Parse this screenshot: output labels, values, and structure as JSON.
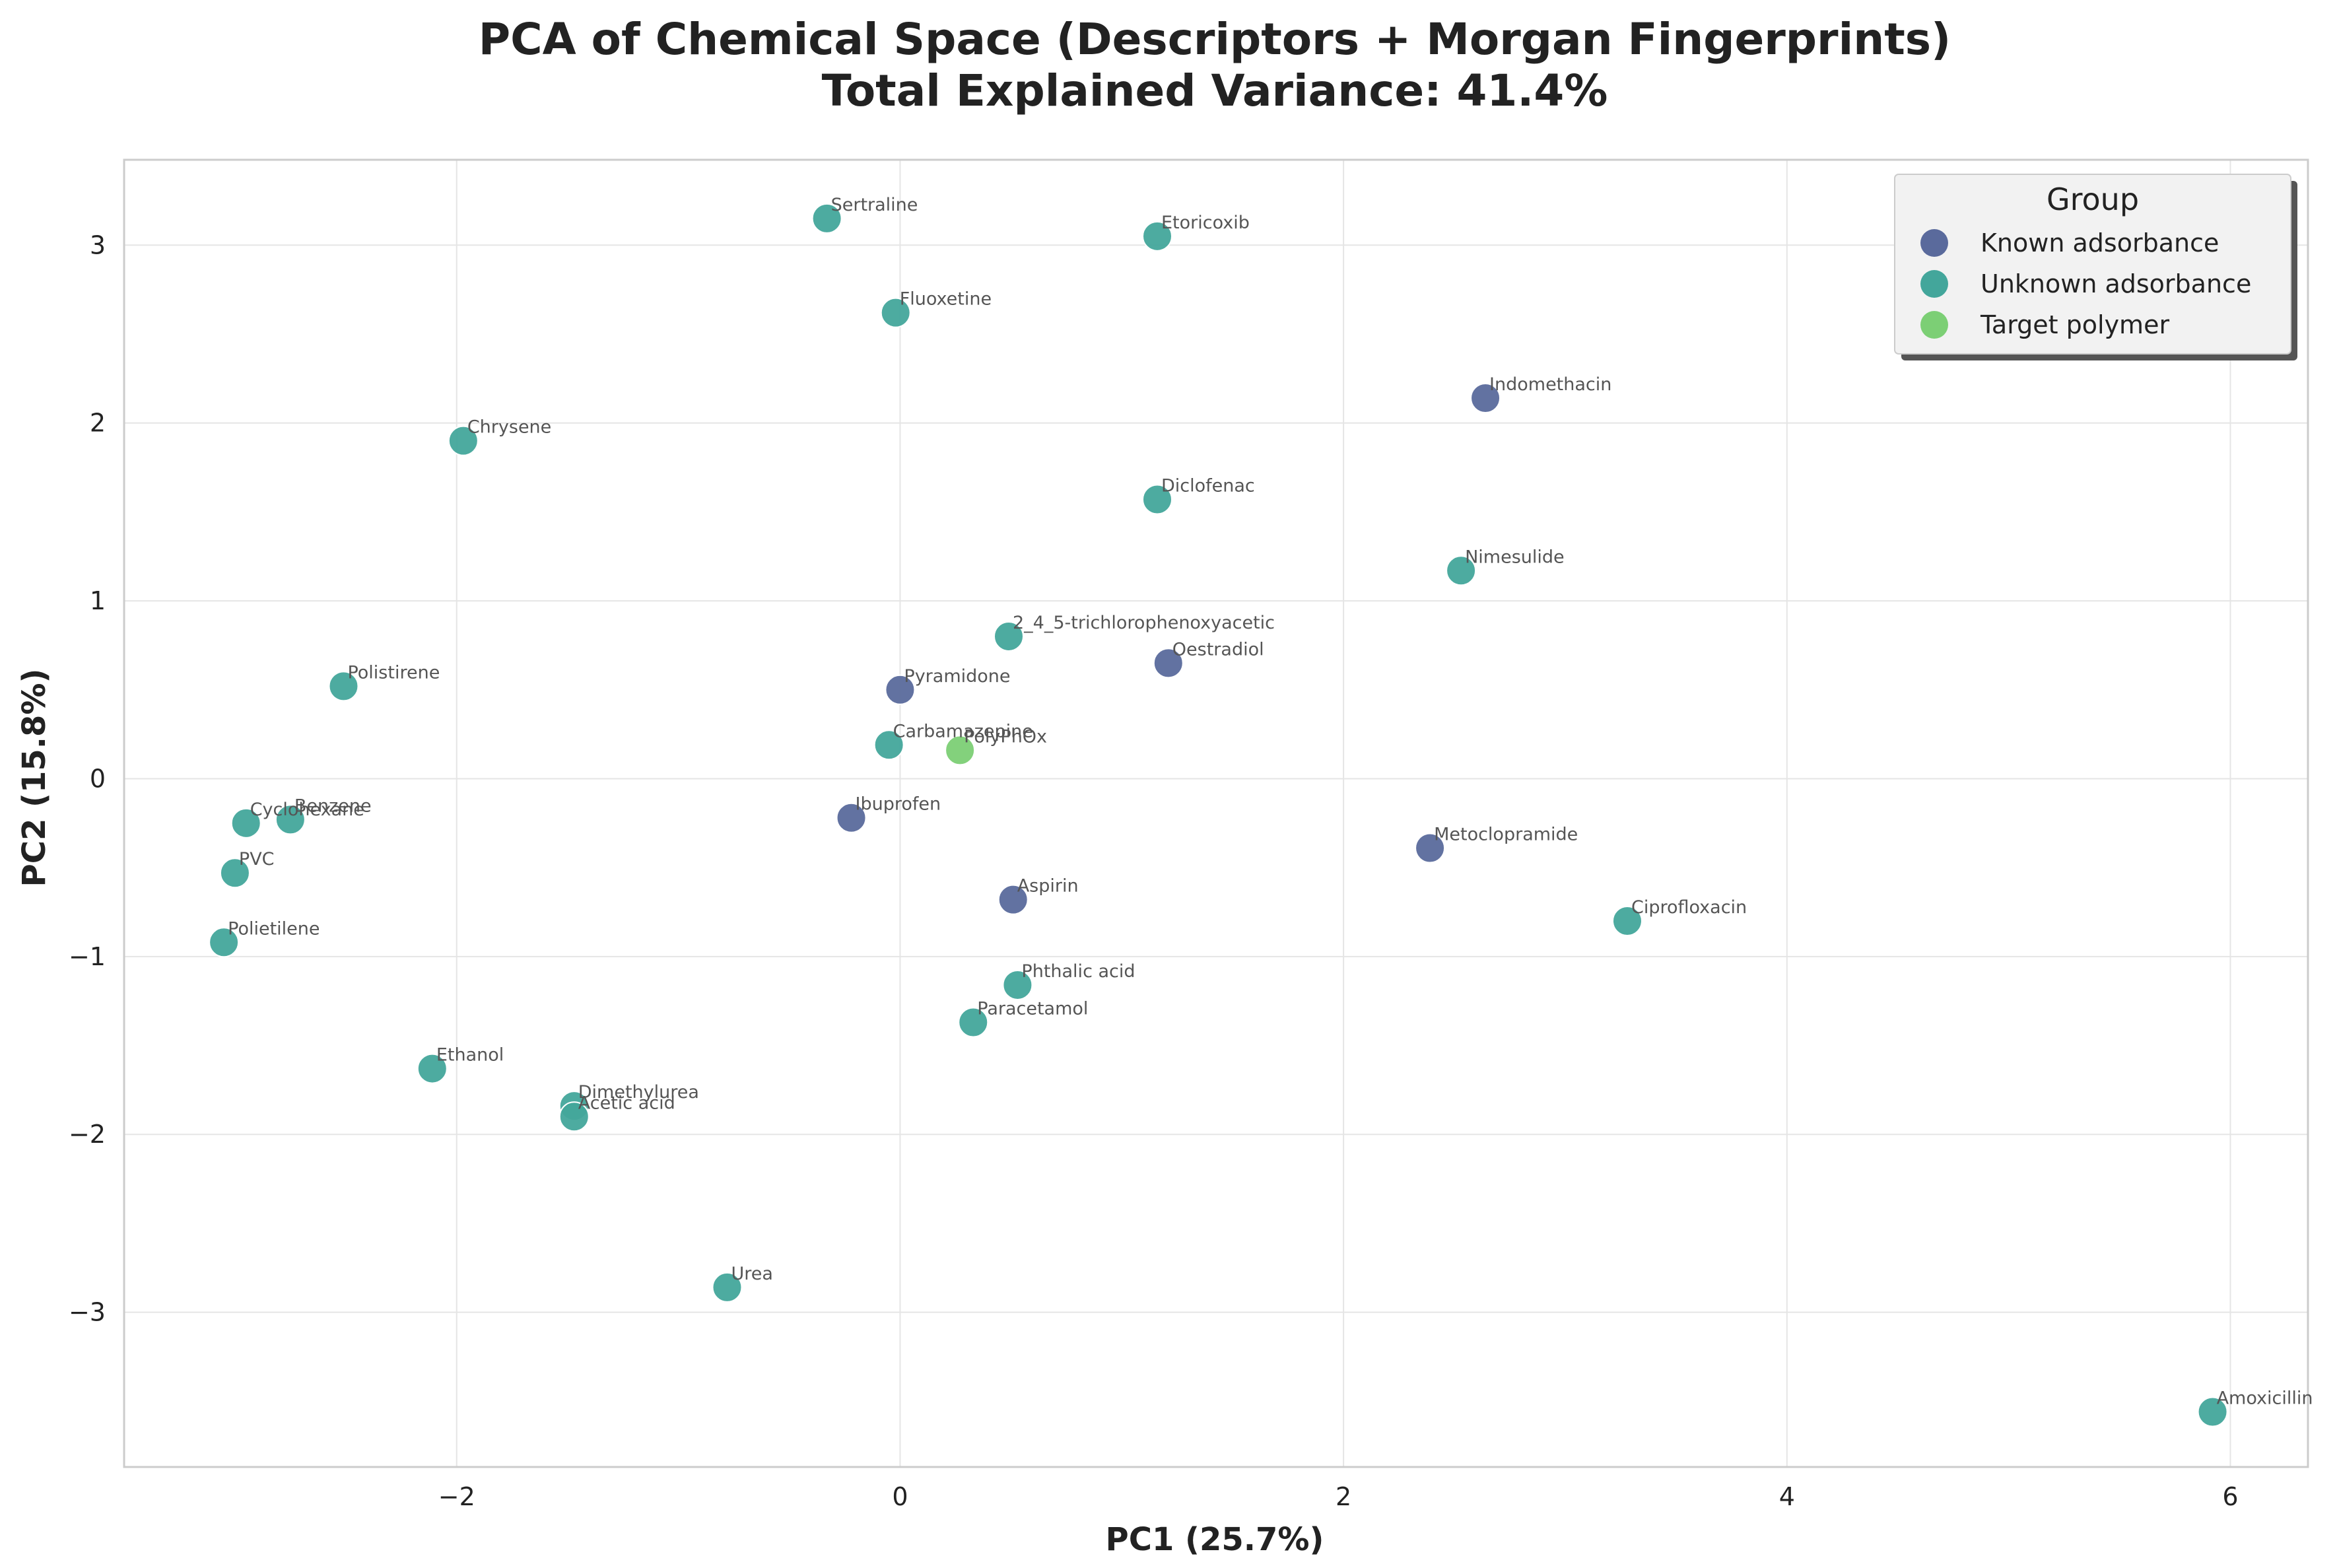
{
  "chart_data": {
    "type": "scatter",
    "title": "PCA of Chemical Space (Descriptors + Morgan Fingerprints)",
    "subtitle": "Total Explained Variance: 41.4%",
    "xlabel": "PC1 (25.7%)",
    "ylabel": "PC2 (15.8%)",
    "xlim": [
      -3.5,
      6.35
    ],
    "ylim": [
      -3.87,
      3.48
    ],
    "xticks": [
      {
        "value": -2,
        "label": "−2"
      },
      {
        "value": 0,
        "label": "0"
      },
      {
        "value": 2,
        "label": "2"
      },
      {
        "value": 4,
        "label": "4"
      },
      {
        "value": 6,
        "label": "6"
      }
    ],
    "yticks": [
      {
        "value": -3,
        "label": "−3"
      },
      {
        "value": -2,
        "label": "−2"
      },
      {
        "value": -1,
        "label": "−1"
      },
      {
        "value": 0,
        "label": "0"
      },
      {
        "value": 1,
        "label": "1"
      },
      {
        "value": 2,
        "label": "2"
      },
      {
        "value": 3,
        "label": "3"
      }
    ],
    "grid": true,
    "legend": {
      "title": "Group",
      "position": "top-right",
      "entries": [
        {
          "name": "Known adsorbance",
          "color": "#5a6a9c"
        },
        {
          "name": "Unknown adsorbance",
          "color": "#43a69b"
        },
        {
          "name": "Target polymer",
          "color": "#7ccf75"
        }
      ]
    },
    "points": [
      {
        "label": "Sertraline",
        "x": -0.33,
        "y": 3.15,
        "group": "Unknown adsorbance"
      },
      {
        "label": "Etoricoxib",
        "x": 1.16,
        "y": 3.05,
        "group": "Unknown adsorbance"
      },
      {
        "label": "Fluoxetine",
        "x": -0.02,
        "y": 2.62,
        "group": "Unknown adsorbance"
      },
      {
        "label": "Indomethacin",
        "x": 2.64,
        "y": 2.14,
        "group": "Known adsorbance"
      },
      {
        "label": "Chrysene",
        "x": -1.97,
        "y": 1.9,
        "group": "Unknown adsorbance"
      },
      {
        "label": "Diclofenac",
        "x": 1.16,
        "y": 1.57,
        "group": "Unknown adsorbance"
      },
      {
        "label": "Nimesulide",
        "x": 2.53,
        "y": 1.17,
        "group": "Unknown adsorbance"
      },
      {
        "label": "2_4_5-trichlorophenoxyacetic",
        "x": 0.49,
        "y": 0.8,
        "group": "Unknown adsorbance"
      },
      {
        "label": "Oestradiol",
        "x": 1.21,
        "y": 0.65,
        "group": "Known adsorbance"
      },
      {
        "label": "Polistirene",
        "x": -2.51,
        "y": 0.52,
        "group": "Unknown adsorbance"
      },
      {
        "label": "Pyramidone",
        "x": 0.0,
        "y": 0.5,
        "group": "Known adsorbance"
      },
      {
        "label": "Carbamazepine",
        "x": -0.05,
        "y": 0.19,
        "group": "Unknown adsorbance"
      },
      {
        "label": "PolyPhOx",
        "x": 0.27,
        "y": 0.16,
        "group": "Target polymer"
      },
      {
        "label": "Cyclohexane",
        "x": -2.95,
        "y": -0.25,
        "group": "Unknown adsorbance"
      },
      {
        "label": "Benzene",
        "x": -2.75,
        "y": -0.23,
        "group": "Unknown adsorbance"
      },
      {
        "label": "Ibuprofen",
        "x": -0.22,
        "y": -0.22,
        "group": "Known adsorbance"
      },
      {
        "label": "Metoclopramide",
        "x": 2.39,
        "y": -0.39,
        "group": "Known adsorbance"
      },
      {
        "label": "PVC",
        "x": -3.0,
        "y": -0.53,
        "group": "Unknown adsorbance"
      },
      {
        "label": "Aspirin",
        "x": 0.51,
        "y": -0.68,
        "group": "Known adsorbance"
      },
      {
        "label": "Ciprofloxacin",
        "x": 3.28,
        "y": -0.8,
        "group": "Unknown adsorbance"
      },
      {
        "label": "Polietilene",
        "x": -3.05,
        "y": -0.92,
        "group": "Unknown adsorbance"
      },
      {
        "label": "Phthalic acid",
        "x": 0.53,
        "y": -1.16,
        "group": "Unknown adsorbance"
      },
      {
        "label": "Paracetamol",
        "x": 0.33,
        "y": -1.37,
        "group": "Unknown adsorbance"
      },
      {
        "label": "Ethanol",
        "x": -2.11,
        "y": -1.63,
        "group": "Unknown adsorbance"
      },
      {
        "label": "Dimethylurea",
        "x": -1.47,
        "y": -1.84,
        "group": "Unknown adsorbance"
      },
      {
        "label": "Acetic acid",
        "x": -1.47,
        "y": -1.9,
        "group": "Unknown adsorbance"
      },
      {
        "label": "Urea",
        "x": -0.78,
        "y": -2.86,
        "group": "Unknown adsorbance"
      },
      {
        "label": "Amoxicillin",
        "x": 5.92,
        "y": -3.56,
        "group": "Unknown adsorbance"
      }
    ]
  }
}
